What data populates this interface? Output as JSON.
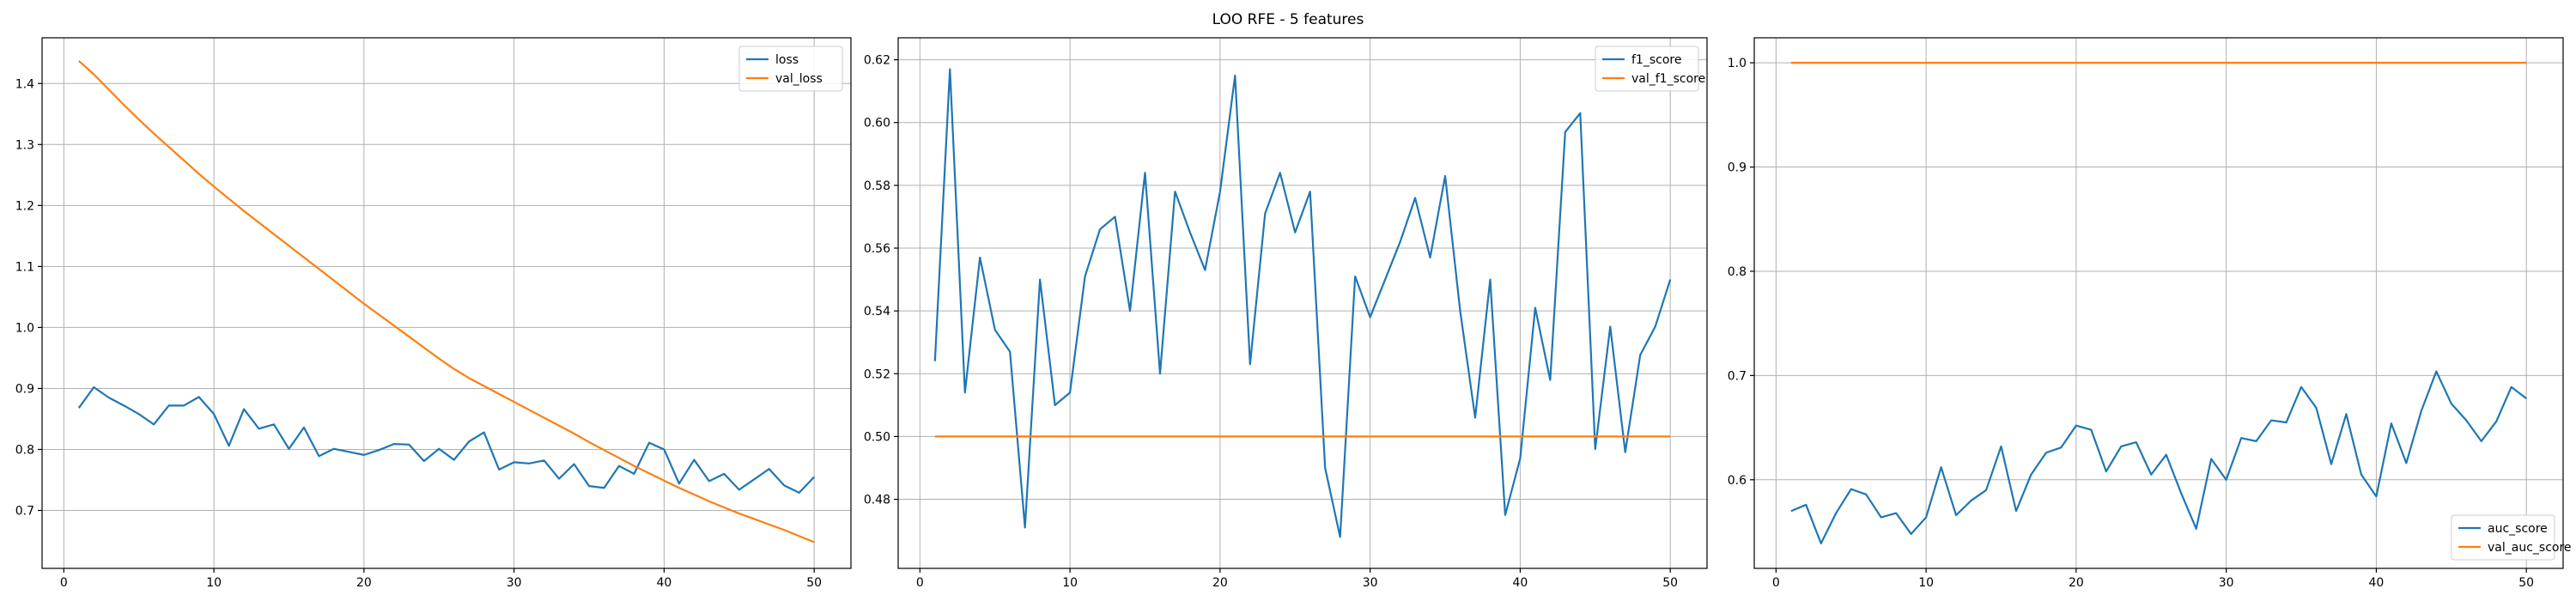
{
  "figure": {
    "title": "LOO RFE - 5 features"
  },
  "colors": {
    "blue": "#1f77b4",
    "orange": "#ff7f0e"
  },
  "chart_data": [
    {
      "type": "line",
      "title": "",
      "xlabel": "",
      "ylabel": "",
      "xlim": [
        -1.45,
        52.45
      ],
      "ylim": [
        0.605,
        1.475
      ],
      "xticks": [
        0,
        10,
        20,
        30,
        40,
        50
      ],
      "yticks": [
        0.7,
        0.8,
        0.9,
        1.0,
        1.1,
        1.2,
        1.3,
        1.4
      ],
      "xtick_labels": [
        "0",
        "10",
        "20",
        "30",
        "40",
        "50"
      ],
      "ytick_labels": [
        "0.7",
        "0.8",
        "0.9",
        "1.0",
        "1.1",
        "1.2",
        "1.3",
        "1.4"
      ],
      "grid": true,
      "legend_position": "top-right",
      "x": [
        1,
        2,
        3,
        4,
        5,
        6,
        7,
        8,
        9,
        10,
        11,
        12,
        13,
        14,
        15,
        16,
        17,
        18,
        19,
        20,
        21,
        22,
        23,
        24,
        25,
        26,
        27,
        28,
        29,
        30,
        31,
        32,
        33,
        34,
        35,
        36,
        37,
        38,
        39,
        40,
        41,
        42,
        43,
        44,
        45,
        46,
        47,
        48,
        49,
        50
      ],
      "series": [
        {
          "name": "loss",
          "color": "#1f77b4",
          "values": [
            0.868,
            0.902,
            0.885,
            0.872,
            0.858,
            0.841,
            0.872,
            0.872,
            0.886,
            0.858,
            0.806,
            0.866,
            0.834,
            0.841,
            0.801,
            0.836,
            0.789,
            0.801,
            0.796,
            0.791,
            0.799,
            0.809,
            0.808,
            0.781,
            0.801,
            0.783,
            0.813,
            0.828,
            0.767,
            0.779,
            0.777,
            0.782,
            0.752,
            0.776,
            0.74,
            0.737,
            0.773,
            0.76,
            0.811,
            0.8,
            0.744,
            0.783,
            0.748,
            0.76,
            0.734,
            0.751,
            0.768,
            0.741,
            0.729,
            0.755
          ]
        },
        {
          "name": "val_loss",
          "color": "#ff7f0e",
          "values": [
            1.437,
            1.415,
            1.39,
            1.365,
            1.341,
            1.318,
            1.296,
            1.274,
            1.252,
            1.231,
            1.211,
            1.191,
            1.172,
            1.153,
            1.134,
            1.115,
            1.096,
            1.077,
            1.058,
            1.039,
            1.021,
            1.003,
            0.985,
            0.967,
            0.949,
            0.932,
            0.917,
            0.904,
            0.891,
            0.878,
            0.865,
            0.852,
            0.839,
            0.826,
            0.812,
            0.799,
            0.786,
            0.773,
            0.761,
            0.749,
            0.737,
            0.726,
            0.715,
            0.705,
            0.695,
            0.686,
            0.677,
            0.668,
            0.658,
            0.648
          ]
        }
      ]
    },
    {
      "type": "line",
      "title": "",
      "xlabel": "",
      "ylabel": "",
      "xlim": [
        -1.45,
        52.45
      ],
      "ylim": [
        0.458,
        0.627
      ],
      "xticks": [
        0,
        10,
        20,
        30,
        40,
        50
      ],
      "yticks": [
        0.48,
        0.5,
        0.52,
        0.54,
        0.56,
        0.58,
        0.6,
        0.62
      ],
      "xtick_labels": [
        "0",
        "10",
        "20",
        "30",
        "40",
        "50"
      ],
      "ytick_labels": [
        "0.48",
        "0.50",
        "0.52",
        "0.54",
        "0.56",
        "0.58",
        "0.60",
        "0.62"
      ],
      "grid": true,
      "legend_position": "top-right",
      "x": [
        1,
        2,
        3,
        4,
        5,
        6,
        7,
        8,
        9,
        10,
        11,
        12,
        13,
        14,
        15,
        16,
        17,
        18,
        19,
        20,
        21,
        22,
        23,
        24,
        25,
        26,
        27,
        28,
        29,
        30,
        31,
        32,
        33,
        34,
        35,
        36,
        37,
        38,
        39,
        40,
        41,
        42,
        43,
        44,
        45,
        46,
        47,
        48,
        49,
        50
      ],
      "series": [
        {
          "name": "f1_score",
          "color": "#1f77b4",
          "values": [
            0.524,
            0.617,
            0.514,
            0.557,
            0.534,
            0.527,
            0.471,
            0.55,
            0.51,
            0.514,
            0.551,
            0.566,
            0.57,
            0.54,
            0.584,
            0.52,
            0.578,
            0.565,
            0.553,
            0.578,
            0.615,
            0.523,
            0.571,
            0.584,
            0.565,
            0.578,
            0.49,
            0.468,
            0.551,
            0.538,
            0.55,
            0.562,
            0.576,
            0.557,
            0.583,
            0.54,
            0.506,
            0.55,
            0.475,
            0.493,
            0.541,
            0.518,
            0.597,
            0.603,
            0.496,
            0.535,
            0.495,
            0.526,
            0.535,
            0.55
          ]
        },
        {
          "name": "val_f1_score",
          "color": "#ff7f0e",
          "values": [
            0.5,
            0.5,
            0.5,
            0.5,
            0.5,
            0.5,
            0.5,
            0.5,
            0.5,
            0.5,
            0.5,
            0.5,
            0.5,
            0.5,
            0.5,
            0.5,
            0.5,
            0.5,
            0.5,
            0.5,
            0.5,
            0.5,
            0.5,
            0.5,
            0.5,
            0.5,
            0.5,
            0.5,
            0.5,
            0.5,
            0.5,
            0.5,
            0.5,
            0.5,
            0.5,
            0.5,
            0.5,
            0.5,
            0.5,
            0.5,
            0.5,
            0.5,
            0.5,
            0.5,
            0.5,
            0.5,
            0.5,
            0.5,
            0.5,
            0.5
          ]
        }
      ]
    },
    {
      "type": "line",
      "title": "",
      "xlabel": "",
      "ylabel": "",
      "xlim": [
        -1.45,
        52.45
      ],
      "ylim": [
        0.515,
        1.024
      ],
      "xticks": [
        0,
        10,
        20,
        30,
        40,
        50
      ],
      "yticks": [
        0.6,
        0.7,
        0.8,
        0.9,
        1.0
      ],
      "xtick_labels": [
        "0",
        "10",
        "20",
        "30",
        "40",
        "50"
      ],
      "ytick_labels": [
        "0.6",
        "0.7",
        "0.8",
        "0.9",
        "1.0"
      ],
      "grid": true,
      "legend_position": "bottom-right",
      "x": [
        1,
        2,
        3,
        4,
        5,
        6,
        7,
        8,
        9,
        10,
        11,
        12,
        13,
        14,
        15,
        16,
        17,
        18,
        19,
        20,
        21,
        22,
        23,
        24,
        25,
        26,
        27,
        28,
        29,
        30,
        31,
        32,
        33,
        34,
        35,
        36,
        37,
        38,
        39,
        40,
        41,
        42,
        43,
        44,
        45,
        46,
        47,
        48,
        49,
        50
      ],
      "series": [
        {
          "name": "auc_score",
          "color": "#1f77b4",
          "values": [
            0.57,
            0.576,
            0.539,
            0.568,
            0.591,
            0.586,
            0.564,
            0.568,
            0.548,
            0.564,
            0.612,
            0.566,
            0.58,
            0.59,
            0.632,
            0.57,
            0.605,
            0.626,
            0.631,
            0.652,
            0.648,
            0.608,
            0.632,
            0.636,
            0.605,
            0.624,
            0.587,
            0.553,
            0.62,
            0.6,
            0.64,
            0.637,
            0.657,
            0.655,
            0.689,
            0.669,
            0.615,
            0.663,
            0.605,
            0.584,
            0.654,
            0.616,
            0.666,
            0.704,
            0.673,
            0.657,
            0.637,
            0.656,
            0.689,
            0.678
          ]
        },
        {
          "name": "val_auc_score",
          "color": "#ff7f0e",
          "values": [
            1.0,
            1.0,
            1.0,
            1.0,
            1.0,
            1.0,
            1.0,
            1.0,
            1.0,
            1.0,
            1.0,
            1.0,
            1.0,
            1.0,
            1.0,
            1.0,
            1.0,
            1.0,
            1.0,
            1.0,
            1.0,
            1.0,
            1.0,
            1.0,
            1.0,
            1.0,
            1.0,
            1.0,
            1.0,
            1.0,
            1.0,
            1.0,
            1.0,
            1.0,
            1.0,
            1.0,
            1.0,
            1.0,
            1.0,
            1.0,
            1.0,
            1.0,
            1.0,
            1.0,
            1.0,
            1.0,
            1.0,
            1.0,
            1.0,
            1.0
          ]
        }
      ]
    }
  ]
}
